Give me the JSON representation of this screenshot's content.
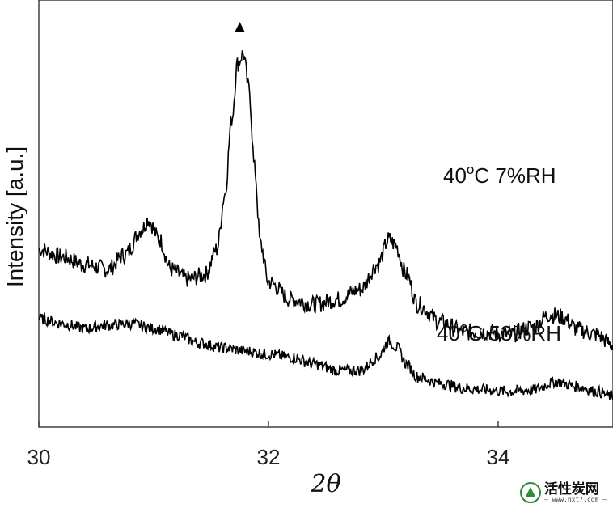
{
  "chart_data": {
    "type": "line",
    "xlabel": "2θ",
    "ylabel": "Intensity [a.u.]",
    "xlim": [
      30,
      35
    ],
    "x_ticks": [
      30,
      32,
      34
    ],
    "y_ticks_shown": false,
    "grid": false,
    "marker_annotation": {
      "symbol": "▲",
      "x": 31.75
    },
    "series": [
      {
        "name_parts": {
          "temp": "40",
          "deg": "o",
          "unit": "C",
          "rh": " 7%RH"
        },
        "offset": 1.0,
        "points": [
          [
            30.0,
            0.58
          ],
          [
            30.2,
            0.55
          ],
          [
            30.4,
            0.52
          ],
          [
            30.6,
            0.5
          ],
          [
            30.75,
            0.56
          ],
          [
            30.9,
            0.66
          ],
          [
            30.95,
            0.7
          ],
          [
            31.05,
            0.62
          ],
          [
            31.15,
            0.5
          ],
          [
            31.3,
            0.46
          ],
          [
            31.45,
            0.48
          ],
          [
            31.55,
            0.58
          ],
          [
            31.62,
            0.8
          ],
          [
            31.68,
            1.1
          ],
          [
            31.73,
            1.32
          ],
          [
            31.78,
            1.36
          ],
          [
            31.83,
            1.22
          ],
          [
            31.88,
            0.9
          ],
          [
            31.93,
            0.6
          ],
          [
            32.0,
            0.45
          ],
          [
            32.2,
            0.38
          ],
          [
            32.4,
            0.36
          ],
          [
            32.6,
            0.38
          ],
          [
            32.8,
            0.42
          ],
          [
            32.95,
            0.52
          ],
          [
            33.05,
            0.62
          ],
          [
            33.1,
            0.6
          ],
          [
            33.2,
            0.48
          ],
          [
            33.3,
            0.36
          ],
          [
            33.5,
            0.29
          ],
          [
            33.7,
            0.25
          ],
          [
            33.9,
            0.25
          ],
          [
            34.1,
            0.24
          ],
          [
            34.3,
            0.27
          ],
          [
            34.45,
            0.32
          ],
          [
            34.55,
            0.31
          ],
          [
            34.7,
            0.26
          ],
          [
            34.85,
            0.24
          ],
          [
            35.0,
            0.2
          ]
        ]
      },
      {
        "name_parts": {
          "temp": "40",
          "deg": "o",
          "unit": "C",
          "rh": " 53%RH"
        },
        "offset": 0.0,
        "points": [
          [
            30.0,
            0.48
          ],
          [
            30.2,
            0.45
          ],
          [
            30.4,
            0.42
          ],
          [
            30.6,
            0.44
          ],
          [
            30.8,
            0.45
          ],
          [
            31.0,
            0.42
          ],
          [
            31.2,
            0.38
          ],
          [
            31.4,
            0.33
          ],
          [
            31.6,
            0.3
          ],
          [
            31.8,
            0.28
          ],
          [
            32.0,
            0.26
          ],
          [
            32.2,
            0.24
          ],
          [
            32.4,
            0.2
          ],
          [
            32.6,
            0.16
          ],
          [
            32.8,
            0.16
          ],
          [
            32.95,
            0.24
          ],
          [
            33.05,
            0.34
          ],
          [
            33.12,
            0.3
          ],
          [
            33.2,
            0.2
          ],
          [
            33.3,
            0.12
          ],
          [
            33.5,
            0.08
          ],
          [
            33.7,
            0.05
          ],
          [
            33.9,
            0.04
          ],
          [
            34.1,
            0.03
          ],
          [
            34.3,
            0.04
          ],
          [
            34.5,
            0.09
          ],
          [
            34.7,
            0.06
          ],
          [
            34.85,
            0.03
          ],
          [
            35.0,
            0.0
          ]
        ]
      }
    ]
  },
  "watermark": {
    "title": "活性炭网",
    "url": "— www.hxt7.com —"
  }
}
